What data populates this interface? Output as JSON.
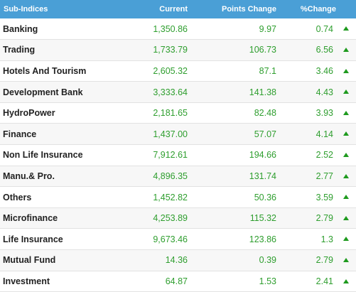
{
  "table": {
    "headers": {
      "name": "Sub-Indices",
      "current": "Current",
      "points_change": "Points Change",
      "percent_change": "%Change"
    },
    "trend_icon": "up-arrow-icon",
    "trend_color": "#1e9a1e",
    "rows": [
      {
        "name": "Banking",
        "current": "1,350.86",
        "points_change": "9.97",
        "percent_change": "0.74",
        "trend": "up"
      },
      {
        "name": "Trading",
        "current": "1,733.79",
        "points_change": "106.73",
        "percent_change": "6.56",
        "trend": "up"
      },
      {
        "name": "Hotels And Tourism",
        "current": "2,605.32",
        "points_change": "87.1",
        "percent_change": "3.46",
        "trend": "up"
      },
      {
        "name": "Development Bank",
        "current": "3,333.64",
        "points_change": "141.38",
        "percent_change": "4.43",
        "trend": "up"
      },
      {
        "name": "HydroPower",
        "current": "2,181.65",
        "points_change": "82.48",
        "percent_change": "3.93",
        "trend": "up"
      },
      {
        "name": "Finance",
        "current": "1,437.00",
        "points_change": "57.07",
        "percent_change": "4.14",
        "trend": "up"
      },
      {
        "name": "Non Life Insurance",
        "current": "7,912.61",
        "points_change": "194.66",
        "percent_change": "2.52",
        "trend": "up"
      },
      {
        "name": "Manu.& Pro.",
        "current": "4,896.35",
        "points_change": "131.74",
        "percent_change": "2.77",
        "trend": "up"
      },
      {
        "name": "Others",
        "current": "1,452.82",
        "points_change": "50.36",
        "percent_change": "3.59",
        "trend": "up"
      },
      {
        "name": "Microfinance",
        "current": "4,253.89",
        "points_change": "115.32",
        "percent_change": "2.79",
        "trend": "up"
      },
      {
        "name": "Life Insurance",
        "current": "9,673.46",
        "points_change": "123.86",
        "percent_change": "1.3",
        "trend": "up"
      },
      {
        "name": "Mutual Fund",
        "current": "14.36",
        "points_change": "0.39",
        "percent_change": "2.79",
        "trend": "up"
      },
      {
        "name": "Investment",
        "current": "64.87",
        "points_change": "1.53",
        "percent_change": "2.41",
        "trend": "up"
      }
    ]
  }
}
